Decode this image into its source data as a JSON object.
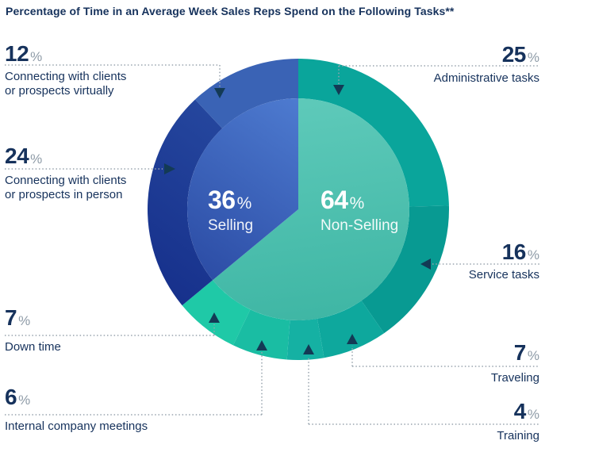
{
  "title": "Percentage of Time in an Average Week Sales Reps Spend on the Following Tasks**",
  "colors": {
    "navy_text": "#16325c",
    "percent_gray": "#8e9ba7",
    "connector_dotted": "#98a4ae",
    "arrow": "#133a55",
    "background": "#ffffff",
    "center_text": "#ffffff"
  },
  "chart_data": {
    "type": "pie",
    "title": "Percentage of Time in an Average Week Sales Reps Spend on the Following Tasks**",
    "units": "percent",
    "legend_position": "none",
    "inner_series": [
      {
        "key": "selling",
        "label": "Selling",
        "value": 36,
        "display": "36",
        "percent_sign": "%",
        "gradient": [
          "#4f7dd2",
          "#2847a0"
        ]
      },
      {
        "key": "non-selling",
        "label": "Non-Selling",
        "value": 64,
        "display": "64",
        "percent_sign": "%",
        "gradient": [
          "#5dc9b9",
          "#3db5a3"
        ]
      }
    ],
    "outer_series": [
      {
        "key": "administrative",
        "label": "Administrative tasks",
        "value": 25,
        "group": "Non-Selling",
        "color": "#0aa59b"
      },
      {
        "key": "service",
        "label": "Service tasks",
        "value": 16,
        "group": "Non-Selling",
        "color": "#089a92"
      },
      {
        "key": "traveling",
        "label": "Traveling",
        "value": 7,
        "group": "Non-Selling",
        "color": "#0ea89d"
      },
      {
        "key": "training",
        "label": "Training",
        "value": 4,
        "group": "Non-Selling",
        "color": "#15b1a3"
      },
      {
        "key": "internal-meetings",
        "label": "Internal company meetings",
        "value": 6,
        "group": "Non-Selling",
        "color": "#1abda3"
      },
      {
        "key": "down-time",
        "label": "Down time",
        "value": 7,
        "group": "Non-Selling",
        "color": "#1fc9a7"
      },
      {
        "key": "in-person",
        "label": "Connecting with clients or prospects in person",
        "value": 24,
        "group": "Selling",
        "color": "#1e3f9a",
        "gradient": [
          "#26489f",
          "#17318c"
        ]
      },
      {
        "key": "virtually",
        "label": "Connecting with clients or prospects virtually",
        "value": 12,
        "group": "Selling",
        "color": "#3a63b5"
      }
    ]
  },
  "callouts": [
    {
      "key": "virtually",
      "number": "12",
      "percent_sign": "%",
      "line1": "Connecting with clients",
      "line2": "or prospects virtually"
    },
    {
      "key": "administrative",
      "number": "25",
      "percent_sign": "%",
      "line1": "Administrative tasks"
    },
    {
      "key": "in-person",
      "number": "24",
      "percent_sign": "%",
      "line1": "Connecting with clients",
      "line2": "or prospects in person"
    },
    {
      "key": "service",
      "number": "16",
      "percent_sign": "%",
      "line1": "Service tasks"
    },
    {
      "key": "down-time",
      "number": "7",
      "percent_sign": "%",
      "line1": "Down time"
    },
    {
      "key": "traveling",
      "number": "7",
      "percent_sign": "%",
      "line1": "Traveling"
    },
    {
      "key": "internal-meetings",
      "number": "6",
      "percent_sign": "%",
      "line1": "Internal company meetings"
    },
    {
      "key": "training",
      "number": "4",
      "percent_sign": "%",
      "line1": "Training"
    }
  ]
}
